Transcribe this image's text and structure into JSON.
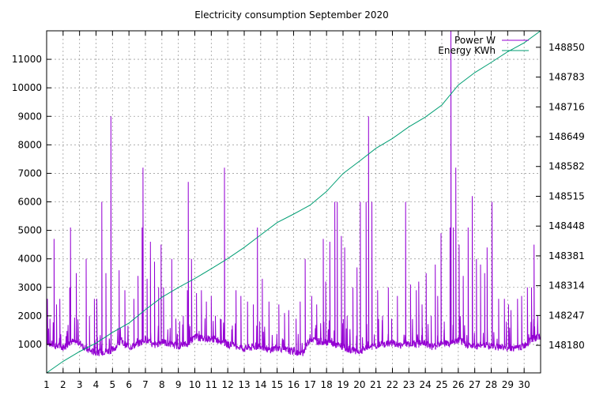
{
  "chart_data": {
    "type": "line",
    "title": "Electricity consumption September 2020",
    "x_ticks": [
      "1",
      "2",
      "3",
      "4",
      "5",
      "6",
      "7",
      "8",
      "9",
      "10",
      "11",
      "12",
      "13",
      "14",
      "15",
      "16",
      "17",
      "18",
      "19",
      "20",
      "21",
      "22",
      "23",
      "24",
      "25",
      "26",
      "27",
      "28",
      "29",
      "30"
    ],
    "xlim": [
      1,
      31
    ],
    "y_ticks": [
      "1000",
      "2000",
      "3000",
      "4000",
      "5000",
      "6000",
      "7000",
      "8000",
      "9000",
      "10000",
      "11000"
    ],
    "ylim": [
      0,
      12000
    ],
    "y2_ticks": [
      "148180",
      "148247",
      "148314",
      "148381",
      "148448",
      "148515",
      "148582",
      "148649",
      "148716",
      "148783",
      "148850"
    ],
    "y2lim": [
      148118,
      148887
    ],
    "grid": true,
    "legend_position": "top-right",
    "series": [
      {
        "name": "Power W",
        "axis": "y",
        "color": "#9400d3",
        "baseline_points": [
          [
            1,
            1100
          ],
          [
            1.5,
            950
          ],
          [
            2,
            900
          ],
          [
            2.5,
            1100
          ],
          [
            3,
            1050
          ],
          [
            3.5,
            800
          ],
          [
            4,
            700
          ],
          [
            4.5,
            750
          ],
          [
            5,
            800
          ],
          [
            5.5,
            1100
          ],
          [
            6,
            900
          ],
          [
            6.5,
            1000
          ],
          [
            7,
            1200
          ],
          [
            7.5,
            950
          ],
          [
            8,
            1100
          ],
          [
            8.5,
            1000
          ],
          [
            9,
            950
          ],
          [
            9.5,
            1000
          ],
          [
            10,
            1250
          ],
          [
            10.5,
            1200
          ],
          [
            11,
            1200
          ],
          [
            11.5,
            1150
          ],
          [
            12,
            1000
          ],
          [
            12.5,
            950
          ],
          [
            13,
            850
          ],
          [
            13.5,
            900
          ],
          [
            14,
            950
          ],
          [
            14.5,
            800
          ],
          [
            15,
            900
          ],
          [
            15.5,
            800
          ],
          [
            16,
            750
          ],
          [
            16.5,
            650
          ],
          [
            17,
            1200
          ],
          [
            17.5,
            1100
          ],
          [
            18,
            1100
          ],
          [
            18.5,
            1000
          ],
          [
            19,
            900
          ],
          [
            19.5,
            800
          ],
          [
            20,
            750
          ],
          [
            20.5,
            900
          ],
          [
            21,
            950
          ],
          [
            21.5,
            1000
          ],
          [
            22,
            1050
          ],
          [
            22.5,
            950
          ],
          [
            23,
            1050
          ],
          [
            23.5,
            1000
          ],
          [
            24,
            1050
          ],
          [
            24.5,
            900
          ],
          [
            25,
            1100
          ],
          [
            25.5,
            1000
          ],
          [
            26,
            1150
          ],
          [
            26.5,
            1000
          ],
          [
            27,
            900
          ],
          [
            27.5,
            1000
          ],
          [
            28,
            950
          ],
          [
            28.5,
            900
          ],
          [
            29,
            900
          ],
          [
            29.5,
            850
          ],
          [
            30,
            950
          ],
          [
            30.5,
            1200
          ],
          [
            31,
            1250
          ]
        ],
        "spikes": [
          [
            1.05,
            2600
          ],
          [
            1.2,
            1900
          ],
          [
            1.45,
            4700
          ],
          [
            1.6,
            2400
          ],
          [
            1.8,
            2600
          ],
          [
            2.4,
            3000
          ],
          [
            2.45,
            5100
          ],
          [
            2.8,
            3500
          ],
          [
            3.4,
            4000
          ],
          [
            3.6,
            2000
          ],
          [
            3.9,
            2600
          ],
          [
            4.05,
            2600
          ],
          [
            4.35,
            6000
          ],
          [
            4.6,
            3500
          ],
          [
            4.9,
            9000
          ],
          [
            5.4,
            3600
          ],
          [
            5.75,
            2900
          ],
          [
            6.3,
            2600
          ],
          [
            6.55,
            3400
          ],
          [
            6.8,
            5100
          ],
          [
            6.85,
            7200
          ],
          [
            7.1,
            3300
          ],
          [
            7.3,
            4600
          ],
          [
            7.55,
            3900
          ],
          [
            7.8,
            3000
          ],
          [
            7.95,
            4500
          ],
          [
            8.1,
            3000
          ],
          [
            8.6,
            4000
          ],
          [
            8.85,
            1900
          ],
          [
            9.3,
            2000
          ],
          [
            9.55,
            2900
          ],
          [
            9.6,
            6700
          ],
          [
            9.8,
            4000
          ],
          [
            10.1,
            2800
          ],
          [
            10.4,
            2900
          ],
          [
            10.7,
            2500
          ],
          [
            11.0,
            2700
          ],
          [
            11.25,
            2000
          ],
          [
            11.55,
            1900
          ],
          [
            11.8,
            7200
          ],
          [
            12.5,
            2900
          ],
          [
            12.8,
            2700
          ],
          [
            13.2,
            2500
          ],
          [
            13.55,
            2400
          ],
          [
            13.8,
            5100
          ],
          [
            14.1,
            3300
          ],
          [
            14.5,
            2500
          ],
          [
            15.1,
            2400
          ],
          [
            15.45,
            2100
          ],
          [
            15.7,
            2200
          ],
          [
            16.15,
            1900
          ],
          [
            16.4,
            2500
          ],
          [
            16.7,
            4000
          ],
          [
            17.1,
            2700
          ],
          [
            17.4,
            2400
          ],
          [
            17.8,
            4700
          ],
          [
            17.95,
            3200
          ],
          [
            18.2,
            4600
          ],
          [
            18.5,
            6000
          ],
          [
            18.65,
            6000
          ],
          [
            18.9,
            4800
          ],
          [
            19.1,
            4400
          ],
          [
            19.25,
            2000
          ],
          [
            19.6,
            3000
          ],
          [
            19.85,
            3700
          ],
          [
            20.05,
            6000
          ],
          [
            20.4,
            6000
          ],
          [
            20.55,
            9000
          ],
          [
            20.75,
            6000
          ],
          [
            21.1,
            2900
          ],
          [
            21.4,
            2000
          ],
          [
            21.75,
            3000
          ],
          [
            21.95,
            1900
          ],
          [
            22.3,
            2700
          ],
          [
            22.8,
            6000
          ],
          [
            23.1,
            3100
          ],
          [
            23.45,
            2900
          ],
          [
            23.6,
            3200
          ],
          [
            23.8,
            2400
          ],
          [
            24.05,
            3500
          ],
          [
            24.35,
            2000
          ],
          [
            24.6,
            3800
          ],
          [
            24.75,
            2700
          ],
          [
            24.95,
            4900
          ],
          [
            25.15,
            1800
          ],
          [
            25.5,
            5100
          ],
          [
            25.55,
            12000
          ],
          [
            25.7,
            5100
          ],
          [
            25.85,
            7200
          ],
          [
            26.05,
            4500
          ],
          [
            26.3,
            3400
          ],
          [
            26.6,
            5100
          ],
          [
            26.85,
            6200
          ],
          [
            27.1,
            4000
          ],
          [
            27.35,
            3800
          ],
          [
            27.6,
            3500
          ],
          [
            27.75,
            4400
          ],
          [
            28.05,
            6000
          ],
          [
            28.45,
            2600
          ],
          [
            28.8,
            2600
          ],
          [
            29.05,
            2400
          ],
          [
            29.2,
            2200
          ],
          [
            29.6,
            2600
          ],
          [
            29.85,
            2700
          ],
          [
            30.2,
            3000
          ],
          [
            30.45,
            3000
          ],
          [
            30.6,
            4500
          ]
        ]
      },
      {
        "name": "Energy KWh",
        "axis": "y2",
        "color": "#009e73",
        "points": [
          [
            1,
            148118
          ],
          [
            2,
            148144
          ],
          [
            3,
            148166
          ],
          [
            4,
            148185
          ],
          [
            5,
            148209
          ],
          [
            6,
            148230
          ],
          [
            7,
            148260
          ],
          [
            8,
            148288
          ],
          [
            9,
            148310
          ],
          [
            10,
            148330
          ],
          [
            11,
            148352
          ],
          [
            12,
            148375
          ],
          [
            13,
            148400
          ],
          [
            14,
            148428
          ],
          [
            15,
            148456
          ],
          [
            16,
            148475
          ],
          [
            17,
            148495
          ],
          [
            18,
            148526
          ],
          [
            19,
            148566
          ],
          [
            20,
            148594
          ],
          [
            21,
            148623
          ],
          [
            22,
            148645
          ],
          [
            23,
            148671
          ],
          [
            24,
            148693
          ],
          [
            25,
            148720
          ],
          [
            25.6,
            148747
          ],
          [
            26,
            148765
          ],
          [
            27,
            148793
          ],
          [
            28,
            148816
          ],
          [
            29,
            148840
          ],
          [
            30,
            148860
          ],
          [
            31,
            148887
          ]
        ]
      }
    ]
  }
}
